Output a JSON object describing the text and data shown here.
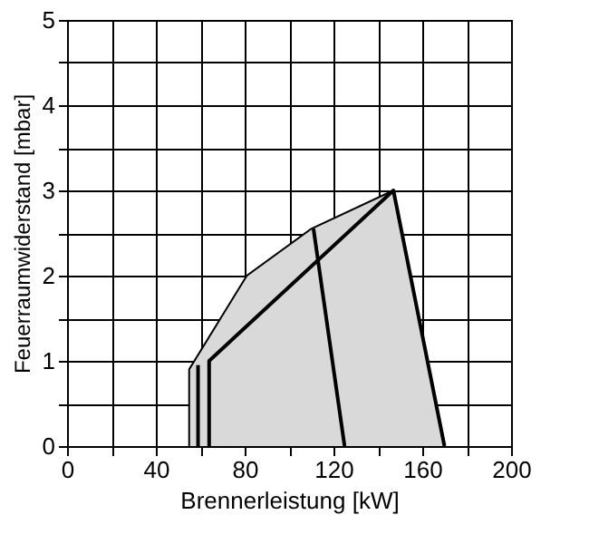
{
  "chart_data": {
    "type": "line",
    "xlabel": "Brennerleistung  [kW]",
    "ylabel": "Feuerraumwiderstand [mbar]",
    "series": [
      {
        "type": "area",
        "color": "#d9d9d9",
        "x": [
          55,
          55,
          81,
          110,
          147,
          170
        ],
        "values": [
          0,
          0.9,
          2,
          2.55,
          3,
          0
        ]
      },
      {
        "color": "#000000",
        "x": [
          64,
          64,
          147,
          170
        ],
        "values": [
          0,
          1,
          3,
          0
        ]
      },
      {
        "color": "#000000",
        "x": [
          111,
          125
        ],
        "values": [
          2.55,
          0
        ]
      },
      {
        "color": "#000000",
        "x": [
          59,
          59
        ],
        "values": [
          0,
          0.95
        ]
      }
    ],
    "xlim": [
      0,
      200
    ],
    "ylim": [
      0,
      5
    ],
    "xticks": [
      0,
      {
        "value": 20,
        "label": null
      },
      40,
      {
        "value": 60,
        "label": null
      },
      80,
      {
        "value": 100,
        "label": null
      },
      120,
      {
        "value": 140,
        "label": null
      },
      160,
      {
        "value": 180,
        "label": null
      },
      200
    ],
    "yticks": [
      0,
      {
        "value": 0.5,
        "label": null
      },
      1,
      {
        "value": 1.5,
        "label": null
      },
      2,
      {
        "value": 2.5,
        "label": null
      },
      3,
      {
        "value": 3.5,
        "label": null
      },
      4,
      {
        "value": 4.5,
        "label": null
      },
      5
    ],
    "grid": true,
    "marker": "none",
    "line_style": "solid"
  }
}
